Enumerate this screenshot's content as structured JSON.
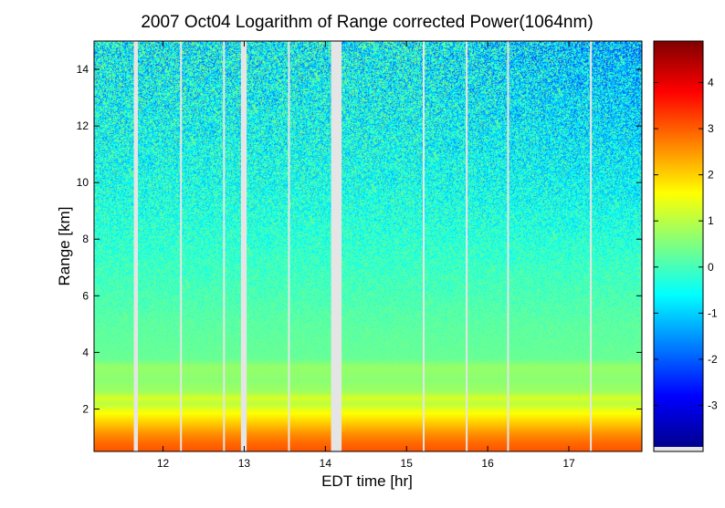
{
  "chart_data": {
    "type": "heatmap",
    "title": "2007 Oct04  Logarithm of Range corrected Power(1064nm)",
    "xlabel": "EDT time [hr]",
    "ylabel": "Range [km]",
    "xlim": [
      11.15,
      17.9
    ],
    "ylim": [
      0.5,
      15.0
    ],
    "x_ticks": [
      12,
      13,
      14,
      15,
      16,
      17
    ],
    "y_ticks": [
      2,
      4,
      6,
      8,
      10,
      12,
      14
    ],
    "colorbar": {
      "range": [
        -3.9,
        4.9
      ],
      "ticks": [
        -3,
        -2,
        -1,
        0,
        1,
        2,
        3,
        4
      ],
      "colormap": "jet"
    },
    "data_gaps_hr": [
      [
        11.64,
        11.69
      ],
      [
        12.21,
        12.23
      ],
      [
        12.74,
        12.76
      ],
      [
        12.96,
        13.03
      ],
      [
        13.54,
        13.56
      ],
      [
        14.07,
        14.2
      ],
      [
        15.2,
        15.22
      ],
      [
        15.73,
        15.75
      ],
      [
        16.24,
        16.26
      ],
      [
        17.26,
        17.28
      ]
    ],
    "profile": [
      {
        "range_km": 0.5,
        "value": 3.1
      },
      {
        "range_km": 0.8,
        "value": 2.9
      },
      {
        "range_km": 1.1,
        "value": 2.6
      },
      {
        "range_km": 1.4,
        "value": 2.2
      },
      {
        "range_km": 1.7,
        "value": 1.8
      },
      {
        "range_km": 2.0,
        "value": 1.4
      },
      {
        "range_km": 2.2,
        "value": 1.0
      },
      {
        "range_km": 2.4,
        "value": 1.3
      },
      {
        "range_km": 2.6,
        "value": 0.8
      },
      {
        "range_km": 3.0,
        "value": 0.6
      },
      {
        "range_km": 3.5,
        "value": 0.7
      },
      {
        "range_km": 3.8,
        "value": 0.3
      },
      {
        "range_km": 5.0,
        "value": 0.2
      },
      {
        "range_km": 6.0,
        "value": 0.05
      },
      {
        "range_km": 8.0,
        "value": -0.2
      },
      {
        "range_km": 10.0,
        "value": -0.4
      },
      {
        "range_km": 12.0,
        "value": -0.5
      },
      {
        "range_km": 15.0,
        "value": -0.6
      }
    ],
    "colors": {
      "gap": "#e5e5e5",
      "frame": "#000000"
    }
  }
}
